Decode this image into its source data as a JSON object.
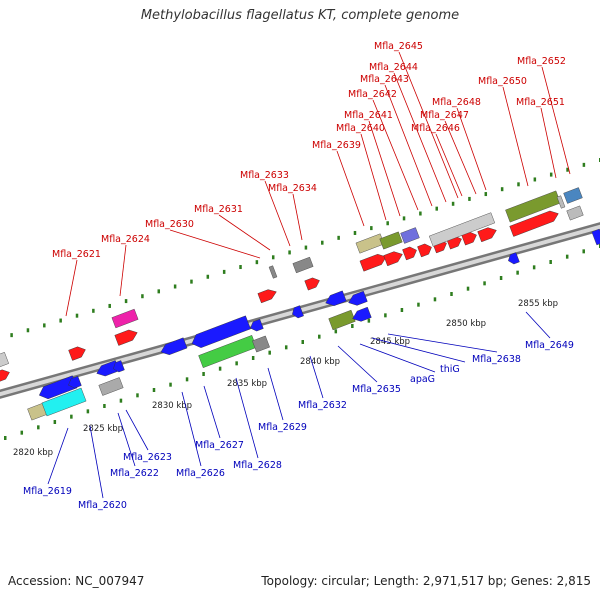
{
  "title": "Methylobacillus flagellatus KT, complete genome",
  "footer": {
    "accession": "Accession: NC_007947",
    "topology": "Topology: circular; Length: 2,971,517 bp; Genes: 2,815"
  },
  "colors": {
    "forward_label": "#cc0000",
    "reverse_label": "#0000bb",
    "backbone": "#8c8c8c",
    "tick": "#2e7d1e",
    "gene_red": "#ff1a1a",
    "gene_blue": "#1a1aff",
    "olive": "#7a9a2e",
    "khaki": "#c9c28a",
    "green": "#44cc44",
    "cyan": "#22f0f0",
    "magenta": "#ee22aa",
    "gray": "#888888",
    "purple": "#7070dd",
    "steel": "#4a86c0"
  },
  "scale_labels": [
    "2820 kbp",
    "2825 kbp",
    "2830 kbp",
    "2835 kbp",
    "2840 kbp",
    "2845 kbp",
    "2850 kbp",
    "2855 kbp"
  ],
  "forward_labels": [
    "Mfla_2621",
    "Mfla_2624",
    "Mfla_2630",
    "Mfla_2631",
    "Mfla_2633",
    "Mfla_2634",
    "Mfla_2639",
    "Mfla_2640",
    "Mfla_2641",
    "Mfla_2642",
    "Mfla_2643",
    "Mfla_2644",
    "Mfla_2645",
    "Mfla_2646",
    "Mfla_2647",
    "Mfla_2648",
    "Mfla_2650",
    "Mfla_2651",
    "Mfla_2652"
  ],
  "reverse_labels": [
    "Mfla_2619",
    "Mfla_2620",
    "Mfla_2622",
    "Mfla_2623",
    "Mfla_2626",
    "Mfla_2627",
    "Mfla_2628",
    "Mfla_2629",
    "Mfla_2632",
    "Mfla_2635",
    "apaG",
    "thiG",
    "Mfla_2638",
    "Mfla_2649"
  ]
}
